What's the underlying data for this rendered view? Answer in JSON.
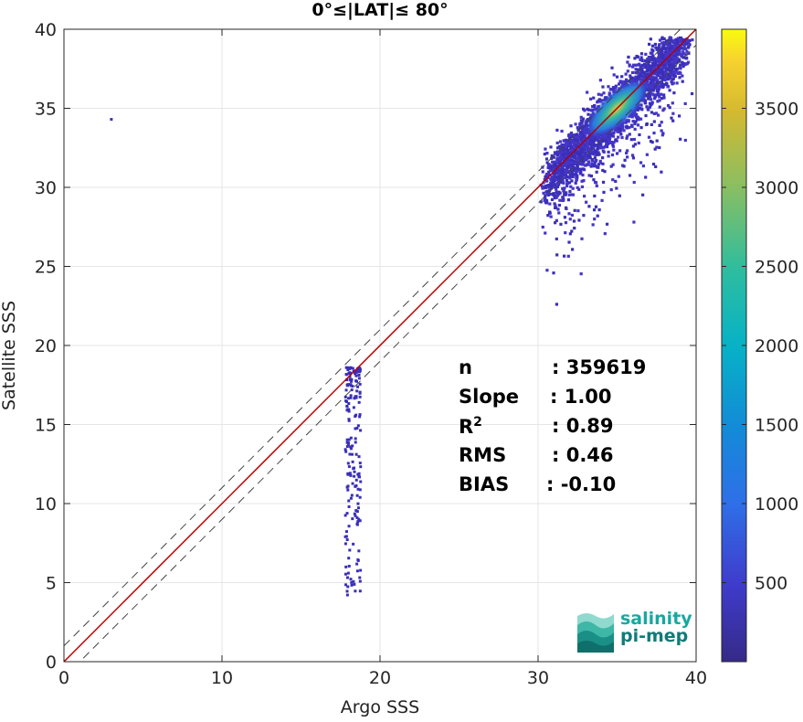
{
  "chart_data": {
    "type": "heatmap",
    "subtype": "2D density scatter (binned counts)",
    "title": "0°≤|LAT|≤ 80°",
    "xlabel": "Argo SSS",
    "ylabel": "Satellite SSS",
    "xlim": [
      0,
      40
    ],
    "ylim": [
      0,
      40
    ],
    "x_ticks": [
      "0",
      "10",
      "20",
      "30",
      "40"
    ],
    "y_ticks": [
      "0",
      "5",
      "10",
      "15",
      "20",
      "25",
      "30",
      "35",
      "40"
    ],
    "grid": true,
    "colorbar": {
      "range": [
        0,
        4000
      ],
      "ticks": [
        "500",
        "1000",
        "1500",
        "2000",
        "2500",
        "3000",
        "3500"
      ],
      "colormap": "parula"
    },
    "reference_lines": [
      {
        "name": "1:1",
        "color": "#b40000",
        "style": "solid",
        "slope": 1,
        "intercept": 0
      },
      {
        "name": "+1",
        "color": "#444444",
        "style": "dashed",
        "slope": 1,
        "intercept": 1
      },
      {
        "name": "-1",
        "color": "#444444",
        "style": "dashed",
        "slope": 1,
        "intercept": -1
      }
    ],
    "density_regions": [
      {
        "x_range": [
          29,
          39.8
        ],
        "y_range": [
          22.5,
          39.5
        ],
        "peak": [
          35,
          35
        ],
        "peak_count": 3900
      },
      {
        "x_range": [
          17.3,
          18.9
        ],
        "y_range": [
          4,
          18.6
        ],
        "peak": [
          18,
          17
        ],
        "peak_count": 60
      },
      {
        "x_range": [
          3,
          3.1
        ],
        "y_range": [
          34.3,
          34.4
        ],
        "peak": [
          3,
          34.3
        ],
        "peak_count": 1
      }
    ]
  },
  "stats": {
    "rows": [
      {
        "key": "n",
        "value": ": 359619"
      },
      {
        "key": "Slope",
        "value": ": 1.00"
      },
      {
        "key": "R",
        "sup": "2",
        "value": ": 0.89"
      },
      {
        "key": "RMS",
        "value": ": 0.46"
      },
      {
        "key": "BIAS",
        "value": ": -0.10"
      }
    ]
  },
  "logo": {
    "line1": "salinity",
    "line2": "pi-mep"
  }
}
